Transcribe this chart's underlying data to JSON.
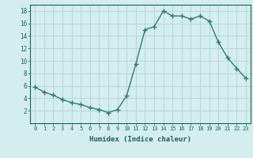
{
  "x": [
    0,
    1,
    2,
    3,
    4,
    5,
    6,
    7,
    8,
    9,
    10,
    11,
    12,
    13,
    14,
    15,
    16,
    17,
    18,
    19,
    20,
    21,
    22,
    23
  ],
  "y": [
    5.8,
    5.0,
    4.5,
    3.8,
    3.3,
    3.0,
    2.5,
    2.2,
    1.7,
    2.2,
    4.4,
    9.5,
    15.0,
    15.5,
    18.0,
    17.2,
    17.2,
    16.7,
    17.2,
    16.4,
    13.0,
    10.5,
    8.8,
    7.2
  ],
  "xlabel": "Humidex (Indice chaleur)",
  "ylim": [
    0,
    19
  ],
  "xlim": [
    -0.5,
    23.5
  ],
  "yticks": [
    2,
    4,
    6,
    8,
    10,
    12,
    14,
    16,
    18
  ],
  "xticks": [
    0,
    1,
    2,
    3,
    4,
    5,
    6,
    7,
    8,
    9,
    10,
    11,
    12,
    13,
    14,
    15,
    16,
    17,
    18,
    19,
    20,
    21,
    22,
    23
  ],
  "line_color": "#2e7d6e",
  "bg_color": "#d4eeee",
  "grid_color": "#bcd8d8",
  "tick_label_color": "#1a5f5a",
  "xlabel_color": "#1a5f5a",
  "marker": "+",
  "marker_size": 4,
  "linewidth": 1.0
}
